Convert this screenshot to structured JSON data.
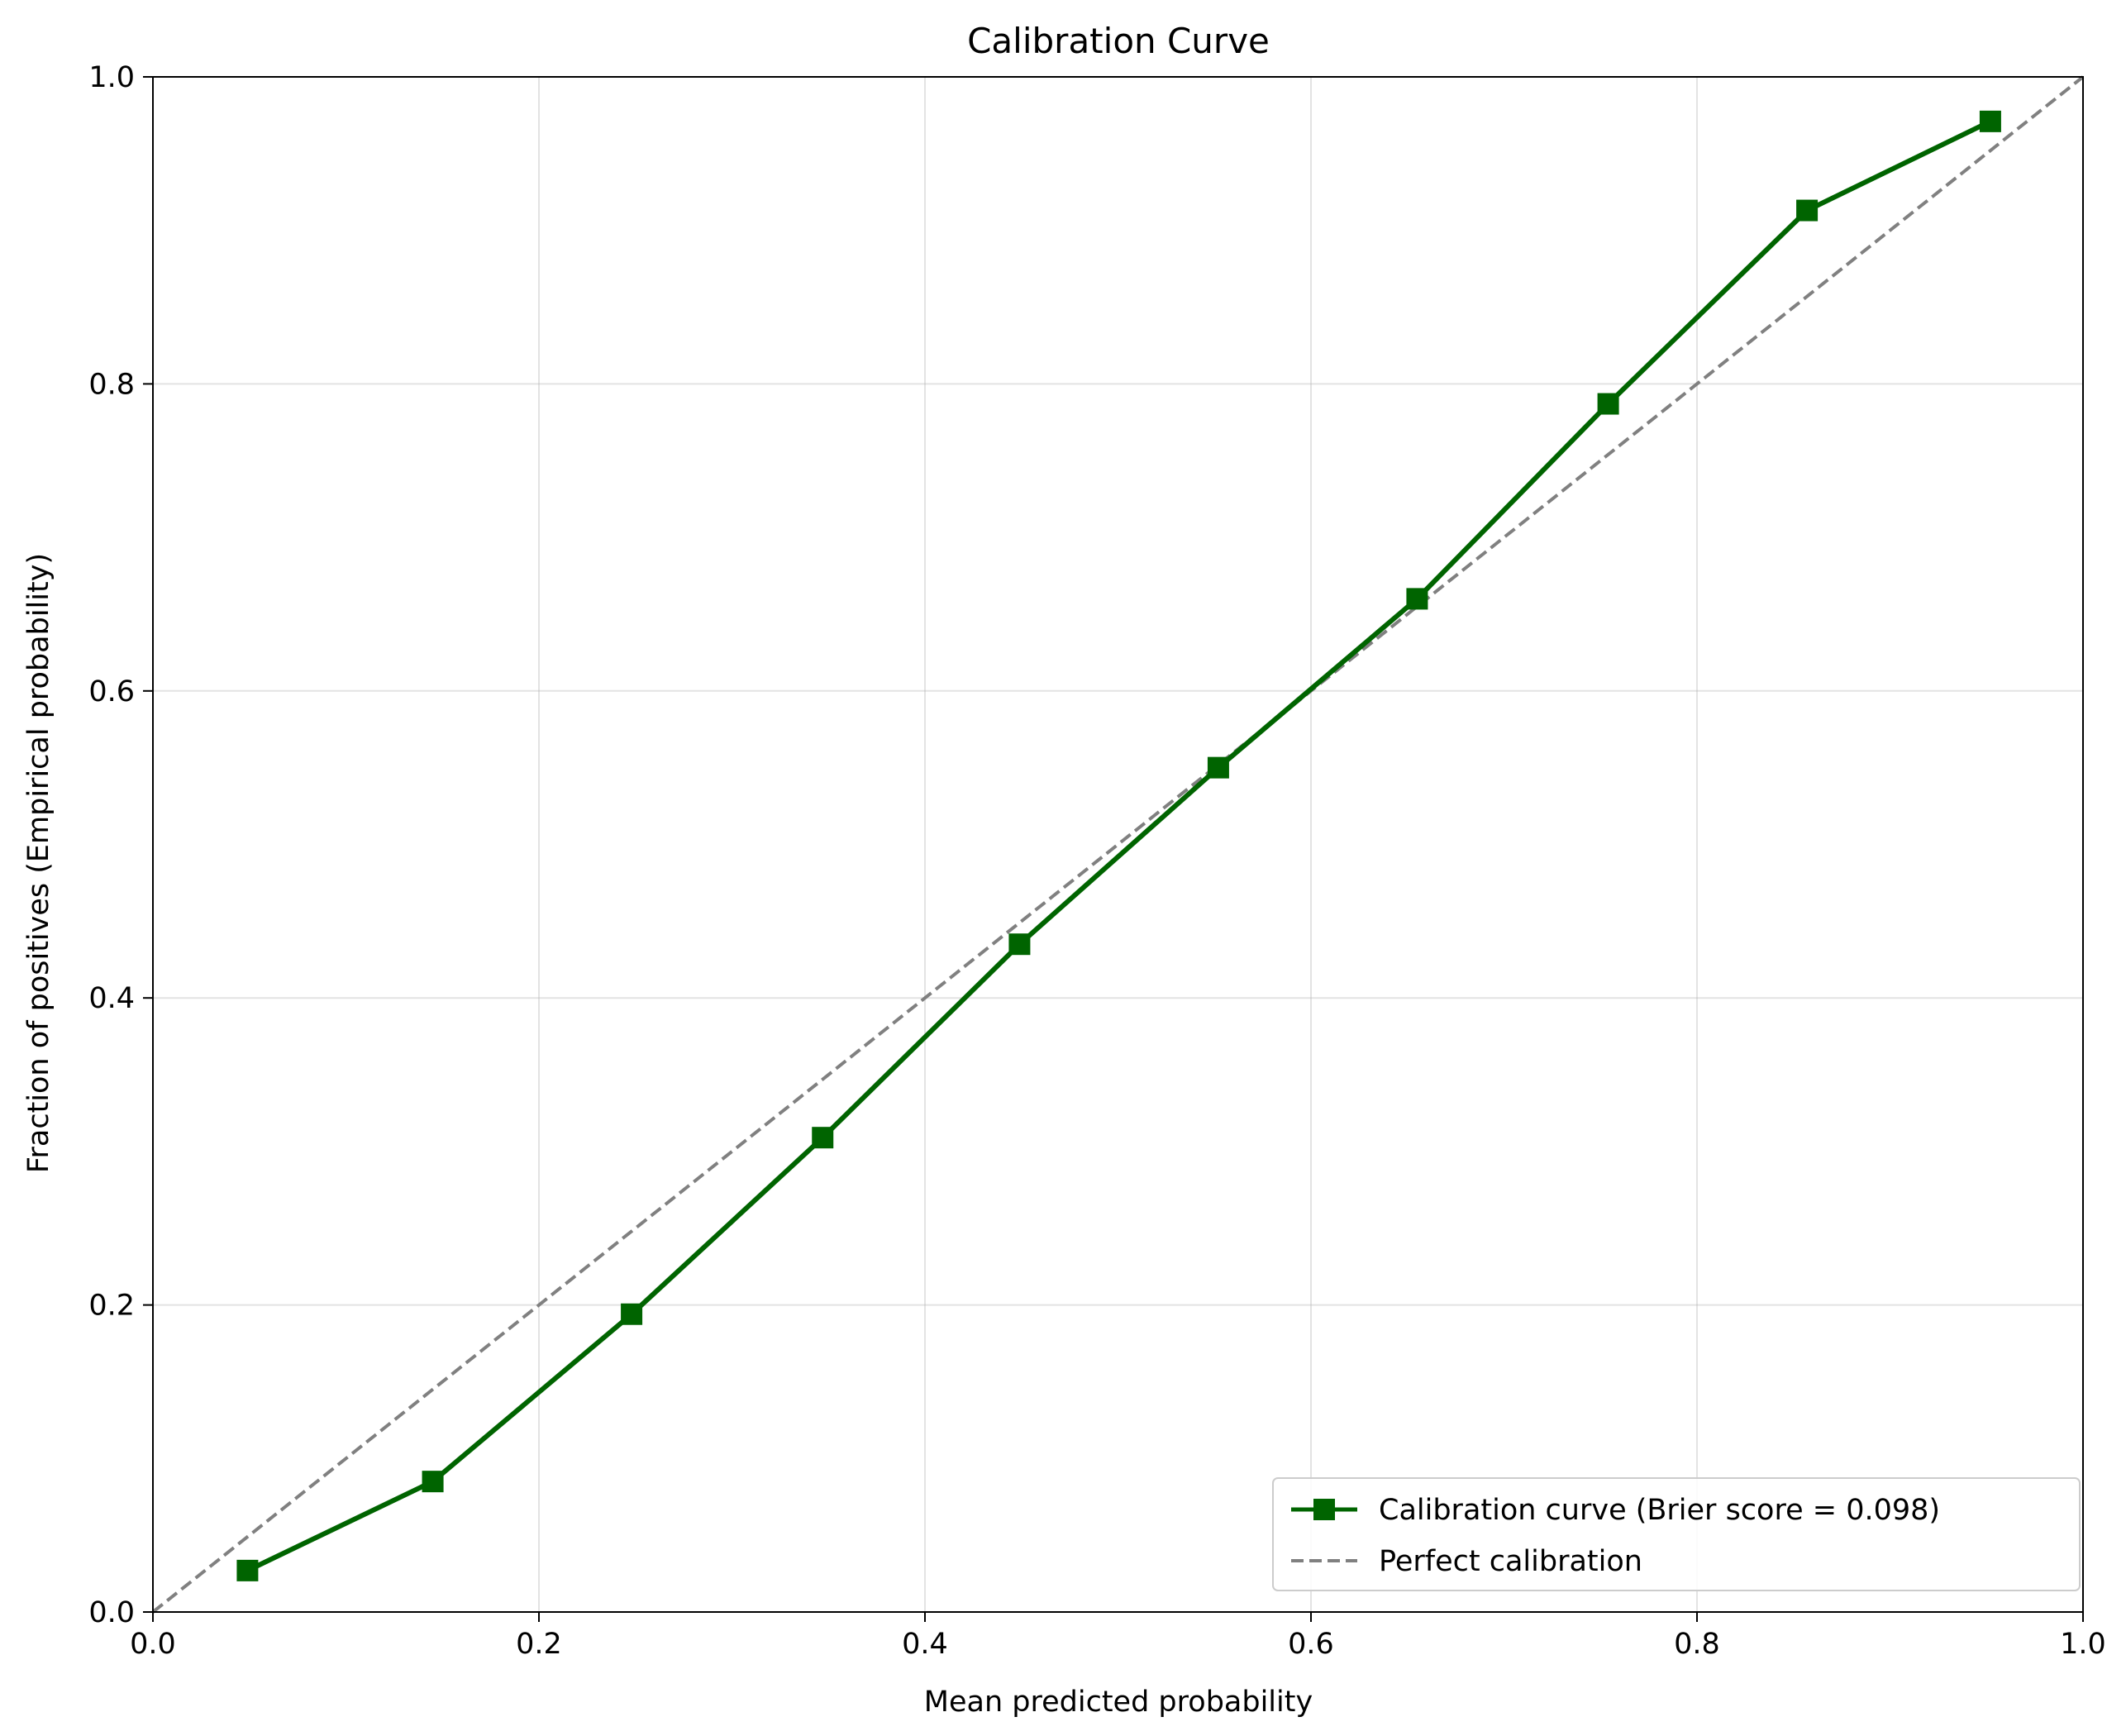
{
  "chart_data": {
    "type": "line",
    "title": "Calibration Curve",
    "xlabel": "Mean predicted probability",
    "ylabel": "Fraction of positives (Empirical probability)",
    "xlim": [
      0.0,
      1.0
    ],
    "ylim": [
      0.0,
      1.0
    ],
    "xticks": [
      "0.0",
      "0.2",
      "0.4",
      "0.6",
      "0.8",
      "1.0"
    ],
    "yticks": [
      "0.0",
      "0.2",
      "0.4",
      "0.6",
      "0.8",
      "1.0"
    ],
    "grid": true,
    "legend_position": "lower-right",
    "series": [
      {
        "name": "Calibration curve (Brier score = 0.098)",
        "color": "#006400",
        "marker": "square",
        "line_style": "solid",
        "x": [
          0.049,
          0.145,
          0.248,
          0.347,
          0.449,
          0.552,
          0.655,
          0.754,
          0.857,
          0.952
        ],
        "y": [
          0.027,
          0.085,
          0.194,
          0.309,
          0.435,
          0.55,
          0.66,
          0.787,
          0.913,
          0.971
        ]
      },
      {
        "name": "Perfect calibration",
        "color": "#808080",
        "line_style": "dashed",
        "x": [
          0.0,
          1.0
        ],
        "y": [
          0.0,
          1.0
        ]
      }
    ]
  }
}
